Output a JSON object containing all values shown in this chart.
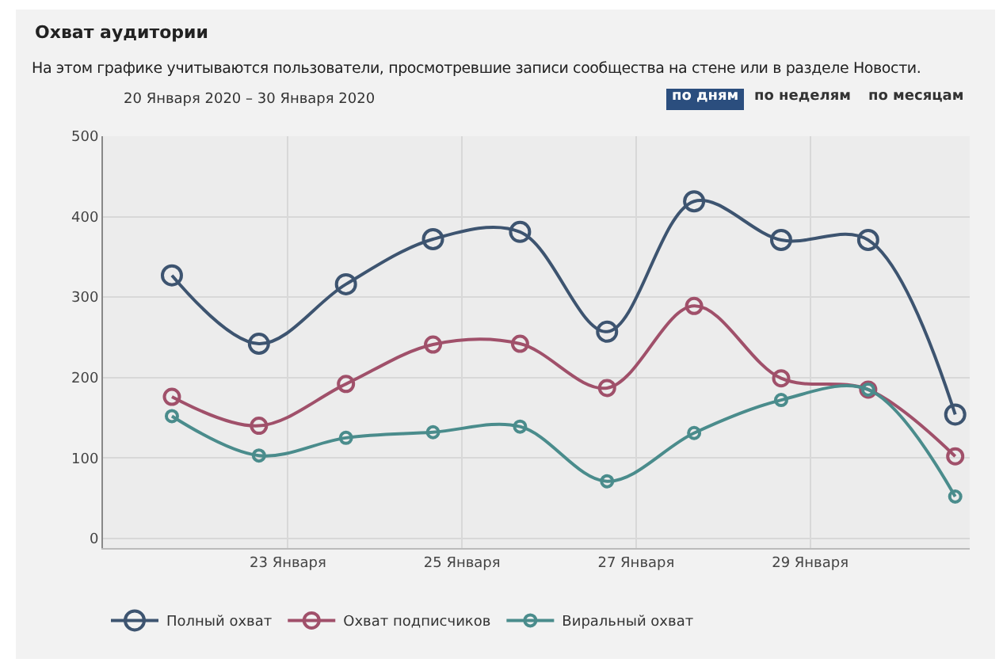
{
  "chart_data": {
    "type": "line",
    "title": "Охват аудитории",
    "subtitle": "На этом графике учитываются пользователи, просмотревшие записи сообщества на стене или в разделе Новости.",
    "annotations": [
      "20 Января 2020 – 30 Января 2020",
      "по дням",
      "по неделям",
      "по месяцам"
    ],
    "x": [
      "2020-01-21T16:00",
      "2020-01-22T16:00",
      "2020-01-23T16:00",
      "2020-01-24T16:00",
      "2020-01-25T16:00",
      "2020-01-26T16:00",
      "2020-01-27T16:00",
      "2020-01-28T16:00",
      "2020-01-29T16:00",
      "2020-01-30T16:00"
    ],
    "series": [
      {
        "name": "Полный охват",
        "color": "#3d5470",
        "values": [
          327,
          242,
          316,
          372,
          381,
          257,
          419,
          371,
          371,
          154
        ]
      },
      {
        "name": "Охват подписчиков",
        "color": "#a0506a",
        "values": [
          176,
          140,
          192,
          241,
          242,
          187,
          289,
          199,
          185,
          102
        ]
      },
      {
        "name": "Виральный охват",
        "color": "#4a8c8c",
        "values": [
          152,
          103,
          125,
          132,
          139,
          71,
          131,
          172,
          185,
          52
        ]
      }
    ],
    "xlim": [
      "2020-01-20T21:00",
      "2020-01-30T20:00"
    ],
    "xticks": [
      {
        "value": "2020-01-23",
        "label": "23 Января"
      },
      {
        "value": "2020-01-25",
        "label": "25 Января"
      },
      {
        "value": "2020-01-27",
        "label": "27 Января"
      },
      {
        "value": "2020-01-29",
        "label": "29 Января"
      }
    ],
    "ylim": [
      -12,
      500
    ],
    "yticks": [
      0,
      100,
      200,
      300,
      400,
      500
    ],
    "grid": true,
    "legend": "bottom",
    "marker": "circle",
    "line_style": "solid"
  }
}
